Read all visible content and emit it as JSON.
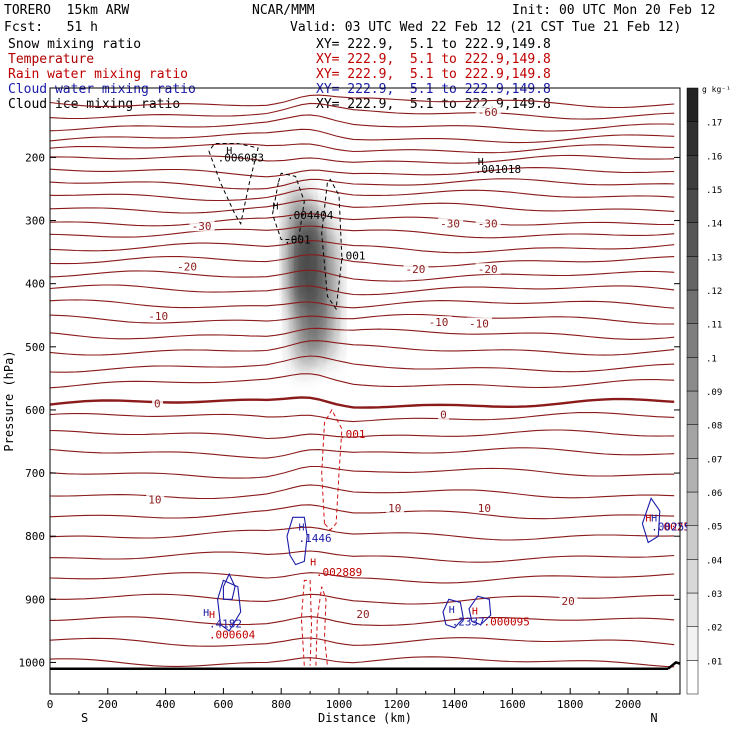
{
  "header": {
    "model": "TORERO  15km ARW",
    "org": "NCAR/MMM",
    "init": "Init: 00 UTC Mon 20 Feb 12",
    "fcst": "Fcst:   51 h",
    "valid": "Valid: 03 UTC Wed 22 Feb 12 (21 CST Tue 21 Feb 12)"
  },
  "fields": [
    {
      "label": "Snow mixing ratio",
      "color": "#000000",
      "xy": "XY= 222.9,  5.1 to 222.9,149.8",
      "xy_color": "#000000"
    },
    {
      "label": "Temperature",
      "color": "#b00000",
      "xy": "XY= 222.9,  5.1 to 222.9,149.8",
      "xy_color": "#c00000"
    },
    {
      "label": "Rain water mixing ratio",
      "color": "#c00000",
      "xy": "XY= 222.9,  5.1 to 222.9,149.8",
      "xy_color": "#c00000"
    },
    {
      "label": "Cloud water mixing ratio",
      "color": "#1a1aa8",
      "xy": "XY= 222.9,  5.1 to 222.9,149.8",
      "xy_color": "#1a1aa8"
    },
    {
      "label": "Cloud ice mixing ratio",
      "color": "#000000",
      "xy": "XY= 222.9,  5.1 to 222.9,149.8",
      "xy_color": "#000000"
    }
  ],
  "chart_data": {
    "type": "contour cross-section",
    "xlabel": "Distance (km)",
    "ylabel": "Pressure (hPa)",
    "xlim": [
      0,
      2180
    ],
    "ylim": [
      1050,
      90
    ],
    "x_ticks": [
      0,
      200,
      400,
      600,
      800,
      1000,
      1200,
      1400,
      1600,
      1800,
      2000
    ],
    "y_ticks": [
      200,
      300,
      400,
      500,
      600,
      700,
      800,
      900,
      1000
    ],
    "x_end_labels": {
      "left": "S",
      "right": "N"
    },
    "colorbar": {
      "unit": "g kg⁻¹",
      "labels": [
        ".01",
        ".02",
        ".03",
        ".04",
        ".05",
        ".06",
        ".07",
        ".08",
        ".09",
        ".1",
        ".11",
        ".12",
        ".13",
        ".14",
        ".15",
        ".16",
        ".17"
      ]
    },
    "temperature_contours": {
      "color": "#8b1a1a",
      "interval": 5,
      "labeled": [
        {
          "value": -60,
          "label": "-60",
          "x": 1480,
          "p": 128
        },
        {
          "value": -30,
          "label": "-30",
          "x": 490,
          "p": 309
        },
        {
          "value": -30,
          "label": "-30",
          "x": 1350,
          "p": 305
        },
        {
          "value": -30,
          "label": "-30",
          "x": 1480,
          "p": 305
        },
        {
          "value": -20,
          "label": "-20",
          "x": 440,
          "p": 373
        },
        {
          "value": -20,
          "label": "-20",
          "x": 1230,
          "p": 377
        },
        {
          "value": -20,
          "label": "-20",
          "x": 1480,
          "p": 377
        },
        {
          "value": -10,
          "label": "-10",
          "x": 340,
          "p": 451
        },
        {
          "value": -10,
          "label": "-10",
          "x": 1310,
          "p": 461
        },
        {
          "value": -10,
          "label": "-10",
          "x": 1450,
          "p": 463
        },
        {
          "value": 0,
          "label": "0",
          "x": 360,
          "p": 590
        },
        {
          "value": 0,
          "label": "0",
          "x": 1350,
          "p": 607
        },
        {
          "value": 10,
          "label": "10",
          "x": 340,
          "p": 742
        },
        {
          "value": 10,
          "label": "10",
          "x": 1170,
          "p": 755
        },
        {
          "value": 10,
          "label": "10",
          "x": 1480,
          "p": 755
        },
        {
          "value": 20,
          "label": "20",
          "x": 1060,
          "p": 923
        },
        {
          "value": 20,
          "label": "20",
          "x": 1770,
          "p": 903
        }
      ]
    },
    "snow_shading": {
      "x_range": [
        820,
        1000
      ],
      "p_range": [
        280,
        540
      ],
      "max": 0.14
    },
    "cloud_ice_contours": [
      {
        "label": ".006083",
        "x": 580,
        "p": 200
      },
      {
        "label": ".004404",
        "x": 820,
        "p": 291
      },
      {
        "label": ".001",
        "x": 810,
        "p": 330
      },
      {
        "label": ".001",
        "x": 1000,
        "p": 355
      },
      {
        "label": ".001018",
        "x": 1470,
        "p": 218
      }
    ],
    "rain_contours": [
      {
        "label": ".001",
        "x": 1000,
        "p": 638
      },
      {
        "label": ".002889",
        "x": 920,
        "p": 857
      },
      {
        "label": ".000604",
        "x": 550,
        "p": 956
      },
      {
        "label": ".000095",
        "x": 1500,
        "p": 935
      },
      {
        "label": ".00259",
        "x": 2100,
        "p": 785
      }
    ],
    "cloud_water_contours": [
      {
        "label": ".1446",
        "x": 860,
        "p": 803
      },
      {
        "label": ".4182",
        "x": 550,
        "p": 938
      },
      {
        "label": ".2337",
        "x": 1390,
        "p": 935
      },
      {
        "label": ".00259",
        "x": 2080,
        "p": 785
      }
    ],
    "max_markers": [
      {
        "label": "H",
        "x": 610,
        "p": 188,
        "color": "#000000"
      },
      {
        "label": "H",
        "x": 770,
        "p": 276,
        "color": "#000000"
      },
      {
        "label": "H",
        "x": 1480,
        "p": 206,
        "color": "#000000"
      },
      {
        "label": "H",
        "x": 860,
        "p": 785,
        "color": "#1a1aa8"
      },
      {
        "label": "H",
        "x": 900,
        "p": 840,
        "color": "#c00000"
      },
      {
        "label": "H",
        "x": 530,
        "p": 920,
        "color": "#1a1aa8"
      },
      {
        "label": "H",
        "x": 550,
        "p": 923,
        "color": "#c00000"
      },
      {
        "label": "H",
        "x": 1380,
        "p": 915,
        "color": "#1a1aa8"
      },
      {
        "label": "H",
        "x": 1460,
        "p": 918,
        "color": "#c00000"
      },
      {
        "label": "H",
        "x": 2060,
        "p": 770,
        "color": "#c00000"
      },
      {
        "label": "H",
        "x": 2080,
        "p": 770,
        "color": "#1a1aa8"
      }
    ]
  }
}
